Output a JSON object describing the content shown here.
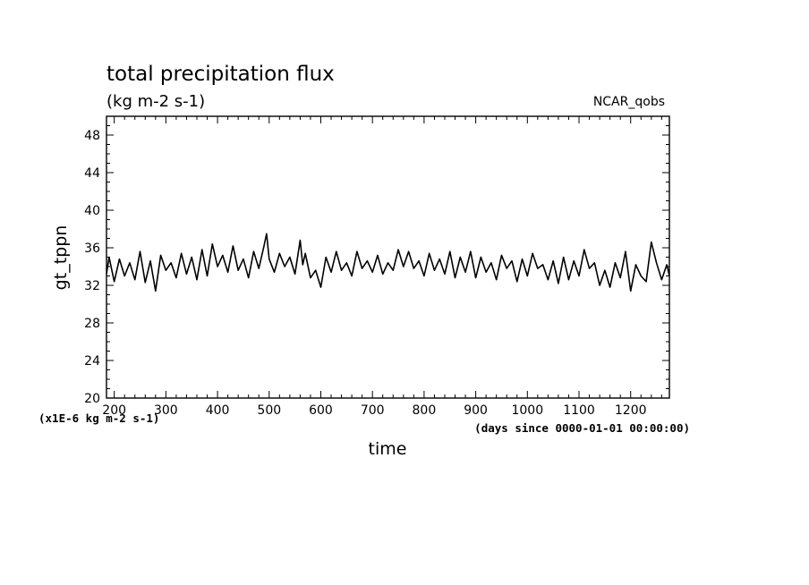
{
  "chart_data": {
    "type": "line",
    "title": "total precipitation flux",
    "subtitle": "(kg m-2 s-1)",
    "dataset_label": "NCAR_qobs",
    "xlabel": "time",
    "ylabel": "gt_tppn",
    "y_units_note": "(x1E-6 kg m-2 s-1)",
    "x_units_note": "(days since 0000-01-01 00:00:00)",
    "xlim": [
      185,
      1275
    ],
    "ylim": [
      20,
      50
    ],
    "x_ticks": [
      200,
      300,
      400,
      500,
      600,
      700,
      800,
      900,
      1000,
      1100,
      1200
    ],
    "y_ticks": [
      20,
      24,
      28,
      32,
      36,
      40,
      44,
      48
    ],
    "grid": false,
    "line_color": "#000000",
    "series": [
      {
        "x": [
          185,
          190,
          200,
          210,
          220,
          230,
          240,
          250,
          260,
          270,
          280,
          290,
          300,
          310,
          320,
          330,
          340,
          350,
          360,
          370,
          380,
          390,
          400,
          410,
          420,
          430,
          440,
          450,
          460,
          470,
          480,
          490,
          495,
          500,
          510,
          520,
          530,
          540,
          550,
          560,
          565,
          570,
          580,
          590,
          600,
          610,
          620,
          630,
          640,
          650,
          660,
          670,
          680,
          690,
          700,
          710,
          720,
          730,
          740,
          750,
          760,
          770,
          780,
          790,
          800,
          810,
          820,
          830,
          840,
          850,
          860,
          870,
          880,
          890,
          900,
          910,
          920,
          930,
          940,
          950,
          960,
          970,
          980,
          990,
          1000,
          1010,
          1020,
          1030,
          1040,
          1050,
          1060,
          1070,
          1080,
          1090,
          1100,
          1110,
          1120,
          1130,
          1140,
          1150,
          1160,
          1170,
          1180,
          1190,
          1200,
          1210,
          1220,
          1230,
          1240,
          1250,
          1260,
          1270,
          1275
        ],
        "y": [
          33.2,
          35.0,
          32.4,
          34.8,
          33.0,
          34.4,
          32.6,
          35.6,
          32.3,
          34.6,
          31.4,
          35.2,
          33.6,
          34.4,
          32.8,
          35.4,
          33.2,
          35.0,
          32.6,
          35.8,
          33.0,
          36.4,
          34.0,
          35.2,
          33.4,
          36.2,
          33.6,
          34.8,
          32.8,
          35.6,
          33.8,
          36.2,
          37.5,
          34.8,
          33.4,
          35.4,
          34.0,
          35.0,
          33.2,
          36.8,
          34.2,
          35.4,
          32.8,
          33.6,
          31.8,
          35.0,
          33.4,
          35.6,
          33.6,
          34.4,
          33.0,
          35.6,
          33.8,
          34.6,
          33.4,
          35.2,
          33.2,
          34.4,
          33.6,
          35.8,
          34.0,
          35.6,
          33.8,
          34.6,
          33.0,
          35.4,
          33.6,
          34.8,
          33.2,
          35.6,
          32.8,
          35.0,
          33.4,
          35.6,
          32.8,
          35.0,
          33.4,
          34.4,
          32.6,
          35.2,
          33.8,
          34.6,
          32.4,
          34.8,
          33.0,
          35.4,
          33.8,
          34.2,
          32.6,
          34.6,
          32.2,
          35.0,
          32.6,
          34.6,
          33.0,
          35.8,
          33.8,
          34.4,
          32.0,
          33.6,
          31.8,
          34.4,
          32.8,
          35.6,
          31.4,
          34.2,
          33.0,
          32.4,
          36.6,
          34.4,
          32.6,
          34.2,
          33.0
        ]
      }
    ]
  }
}
